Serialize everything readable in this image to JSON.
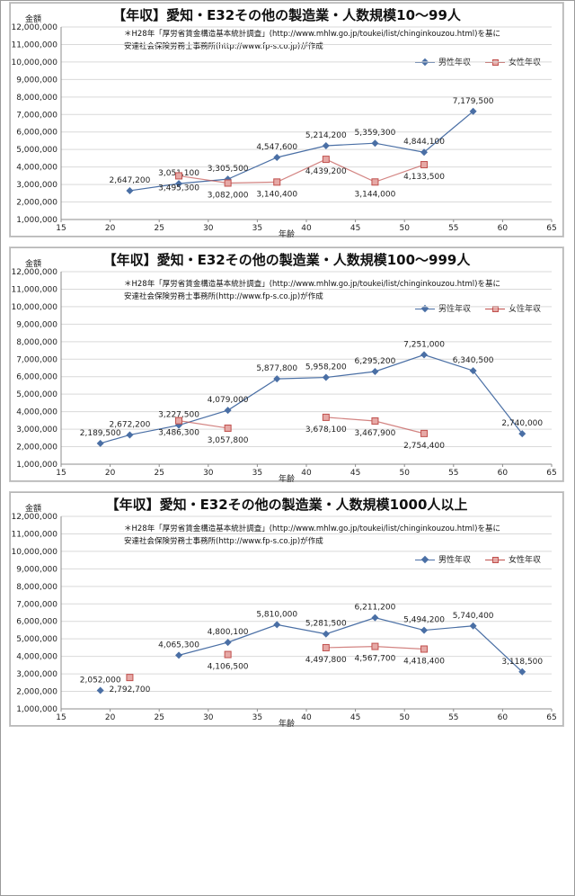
{
  "colors": {
    "male": "#4a6fa5",
    "female": "#c0504d",
    "grid": "#d9d9d9",
    "axis": "#8c8c8c"
  },
  "charts": [
    {
      "title": "【年収】愛知・E32その他の製造業・人数規模10～99人",
      "ylabel": "金額",
      "xlabel": "年齢",
      "note1": "＊H28年「厚労省賃金構造基本統計調査」(http://www.mhlw.go.jp/toukei/list/chinginkouzou.html)を基に",
      "note2": "安達社会保険労務士事務所(http://www.fp-s.co.jp)が作成",
      "legend_male": "男性年収",
      "legend_female": "女性年収"
    },
    {
      "title": "【年収】愛知・E32その他の製造業・人数規模100～999人",
      "ylabel": "金額",
      "xlabel": "年齢",
      "note1": "＊H28年「厚労省賃金構造基本統計調査」(http://www.mhlw.go.jp/toukei/list/chinginkouzou.html)を基に",
      "note2": "安達社会保険労務士事務所(http://www.fp-s.co.jp)が作成",
      "legend_male": "男性年収",
      "legend_female": "女性年収"
    },
    {
      "title": "【年収】愛知・E32その他の製造業・人数規模1000人以上",
      "ylabel": "金額",
      "xlabel": "年齢",
      "note1": "＊H28年「厚労省賃金構造基本統計調査」(http://www.mhlw.go.jp/toukei/list/chinginkouzou.html)を基に",
      "note2": "安達社会保険労務士事務所(http://www.fp-s.co.jp)が作成",
      "legend_male": "男性年収",
      "legend_female": "女性年収"
    }
  ],
  "chart_data": [
    {
      "type": "scatter",
      "title": "【年収】愛知・E32その他の製造業・人数規模10～99人",
      "xlabel": "年齢",
      "ylabel": "金額",
      "xlim": [
        15,
        65
      ],
      "ylim": [
        1000000,
        12000000
      ],
      "xticks": [
        15,
        20,
        25,
        30,
        35,
        40,
        45,
        50,
        55,
        60,
        65
      ],
      "yticks": [
        1000000,
        2000000,
        3000000,
        4000000,
        5000000,
        6000000,
        7000000,
        8000000,
        9000000,
        10000000,
        11000000,
        12000000
      ],
      "ytick_labels": [
        "1,000,000",
        "2,000,000",
        "3,000,000",
        "4,000,000",
        "5,000,000",
        "6,000,000",
        "7,000,000",
        "8,000,000",
        "9,000,000",
        "10,000,000",
        "11,000,000",
        "12,000,000"
      ],
      "xtick_labels": [
        "15",
        "20",
        "25",
        "30",
        "35",
        "40",
        "45",
        "50",
        "55",
        "60",
        "65"
      ],
      "legend": "top-right",
      "grid": true,
      "series": [
        {
          "name": "男性年収",
          "segments": [
            [
              {
                "x": 22,
                "y": 2647200,
                "label": "2,647,200"
              },
              {
                "x": 27,
                "y": 3051100,
                "label": "3,051,100"
              },
              {
                "x": 32,
                "y": 3305500,
                "label": "3,305,500"
              },
              {
                "x": 37,
                "y": 4547600,
                "label": "4,547,600"
              },
              {
                "x": 42,
                "y": 5214200,
                "label": "5,214,200"
              },
              {
                "x": 47,
                "y": 5359300,
                "label": "5,359,300"
              },
              {
                "x": 52,
                "y": 4844100,
                "label": "4,844,100"
              },
              {
                "x": 57,
                "y": 7179500,
                "label": "7,179,500"
              }
            ]
          ]
        },
        {
          "name": "女性年収",
          "segments": [
            [
              {
                "x": 27,
                "y": 3495300,
                "label": "3,495,300"
              },
              {
                "x": 32,
                "y": 3082000,
                "label": "3,082,000"
              },
              {
                "x": 37,
                "y": 3140400,
                "label": "3,140,400"
              },
              {
                "x": 42,
                "y": 4439200,
                "label": "4,439,200"
              },
              {
                "x": 47,
                "y": 3144000,
                "label": "3,144,000"
              },
              {
                "x": 52,
                "y": 4133500,
                "label": "4,133,500"
              }
            ]
          ]
        }
      ]
    },
    {
      "type": "scatter",
      "title": "【年収】愛知・E32その他の製造業・人数規模100～999人",
      "xlabel": "年齢",
      "ylabel": "金額",
      "xlim": [
        15,
        65
      ],
      "ylim": [
        1000000,
        12000000
      ],
      "xticks": [
        15,
        20,
        25,
        30,
        35,
        40,
        45,
        50,
        55,
        60,
        65
      ],
      "yticks": [
        1000000,
        2000000,
        3000000,
        4000000,
        5000000,
        6000000,
        7000000,
        8000000,
        9000000,
        10000000,
        11000000,
        12000000
      ],
      "ytick_labels": [
        "1,000,000",
        "2,000,000",
        "3,000,000",
        "4,000,000",
        "5,000,000",
        "6,000,000",
        "7,000,000",
        "8,000,000",
        "9,000,000",
        "10,000,000",
        "11,000,000",
        "12,000,000"
      ],
      "xtick_labels": [
        "15",
        "20",
        "25",
        "30",
        "35",
        "40",
        "45",
        "50",
        "55",
        "60",
        "65"
      ],
      "legend": "top-right",
      "grid": true,
      "series": [
        {
          "name": "男性年収",
          "segments": [
            [
              {
                "x": 19,
                "y": 2189500,
                "label": "2,189,500"
              },
              {
                "x": 22,
                "y": 2672200,
                "label": "2,672,200"
              },
              {
                "x": 27,
                "y": 3227500,
                "label": "3,227,500"
              },
              {
                "x": 32,
                "y": 4079000,
                "label": "4,079,000"
              },
              {
                "x": 37,
                "y": 5877800,
                "label": "5,877,800"
              },
              {
                "x": 42,
                "y": 5958200,
                "label": "5,958,200"
              },
              {
                "x": 47,
                "y": 6295200,
                "label": "6,295,200"
              },
              {
                "x": 52,
                "y": 7251000,
                "label": "7,251,000"
              },
              {
                "x": 57,
                "y": 6340500,
                "label": "6,340,500"
              },
              {
                "x": 62,
                "y": 2740000,
                "label": "2,740,000"
              }
            ]
          ]
        },
        {
          "name": "女性年収",
          "segments": [
            [
              {
                "x": 27,
                "y": 3486300,
                "label": "3,486,300"
              },
              {
                "x": 32,
                "y": 3057800,
                "label": "3,057,800"
              }
            ],
            [
              {
                "x": 42,
                "y": 3678100,
                "label": "3,678,100"
              },
              {
                "x": 47,
                "y": 3467900,
                "label": "3,467,900"
              },
              {
                "x": 52,
                "y": 2754400,
                "label": "2,754,400"
              }
            ]
          ]
        }
      ]
    },
    {
      "type": "scatter",
      "title": "【年収】愛知・E32その他の製造業・人数規模1000人以上",
      "xlabel": "年齢",
      "ylabel": "金額",
      "xlim": [
        15,
        65
      ],
      "ylim": [
        1000000,
        12000000
      ],
      "xticks": [
        15,
        20,
        25,
        30,
        35,
        40,
        45,
        50,
        55,
        60,
        65
      ],
      "yticks": [
        1000000,
        2000000,
        3000000,
        4000000,
        5000000,
        6000000,
        7000000,
        8000000,
        9000000,
        10000000,
        11000000,
        12000000
      ],
      "ytick_labels": [
        "1,000,000",
        "2,000,000",
        "3,000,000",
        "4,000,000",
        "5,000,000",
        "6,000,000",
        "7,000,000",
        "8,000,000",
        "9,000,000",
        "10,000,000",
        "11,000,000",
        "12,000,000"
      ],
      "xtick_labels": [
        "15",
        "20",
        "25",
        "30",
        "35",
        "40",
        "45",
        "50",
        "55",
        "60",
        "65"
      ],
      "legend": "top-right",
      "grid": true,
      "series": [
        {
          "name": "男性年収",
          "segments": [
            [
              {
                "x": 19,
                "y": 2052000,
                "label": "2,052,000"
              }
            ],
            [
              {
                "x": 27,
                "y": 4065300,
                "label": "4,065,300"
              },
              {
                "x": 32,
                "y": 4800100,
                "label": "4,800,100"
              },
              {
                "x": 37,
                "y": 5810000,
                "label": "5,810,000"
              },
              {
                "x": 42,
                "y": 5281500,
                "label": "5,281,500"
              },
              {
                "x": 47,
                "y": 6211200,
                "label": "6,211,200"
              },
              {
                "x": 52,
                "y": 5494200,
                "label": "5,494,200"
              },
              {
                "x": 57,
                "y": 5740400,
                "label": "5,740,400"
              },
              {
                "x": 62,
                "y": 3118500,
                "label": "3,118,500"
              }
            ]
          ]
        },
        {
          "name": "女性年収",
          "segments": [
            [
              {
                "x": 22,
                "y": 2792700,
                "label": "2,792,700"
              }
            ],
            [
              {
                "x": 32,
                "y": 4106500,
                "label": "4,106,500"
              }
            ],
            [
              {
                "x": 42,
                "y": 4497800,
                "label": "4,497,800"
              },
              {
                "x": 47,
                "y": 4567700,
                "label": "4,567,700"
              },
              {
                "x": 52,
                "y": 4418400,
                "label": "4,418,400"
              }
            ]
          ]
        }
      ]
    }
  ]
}
